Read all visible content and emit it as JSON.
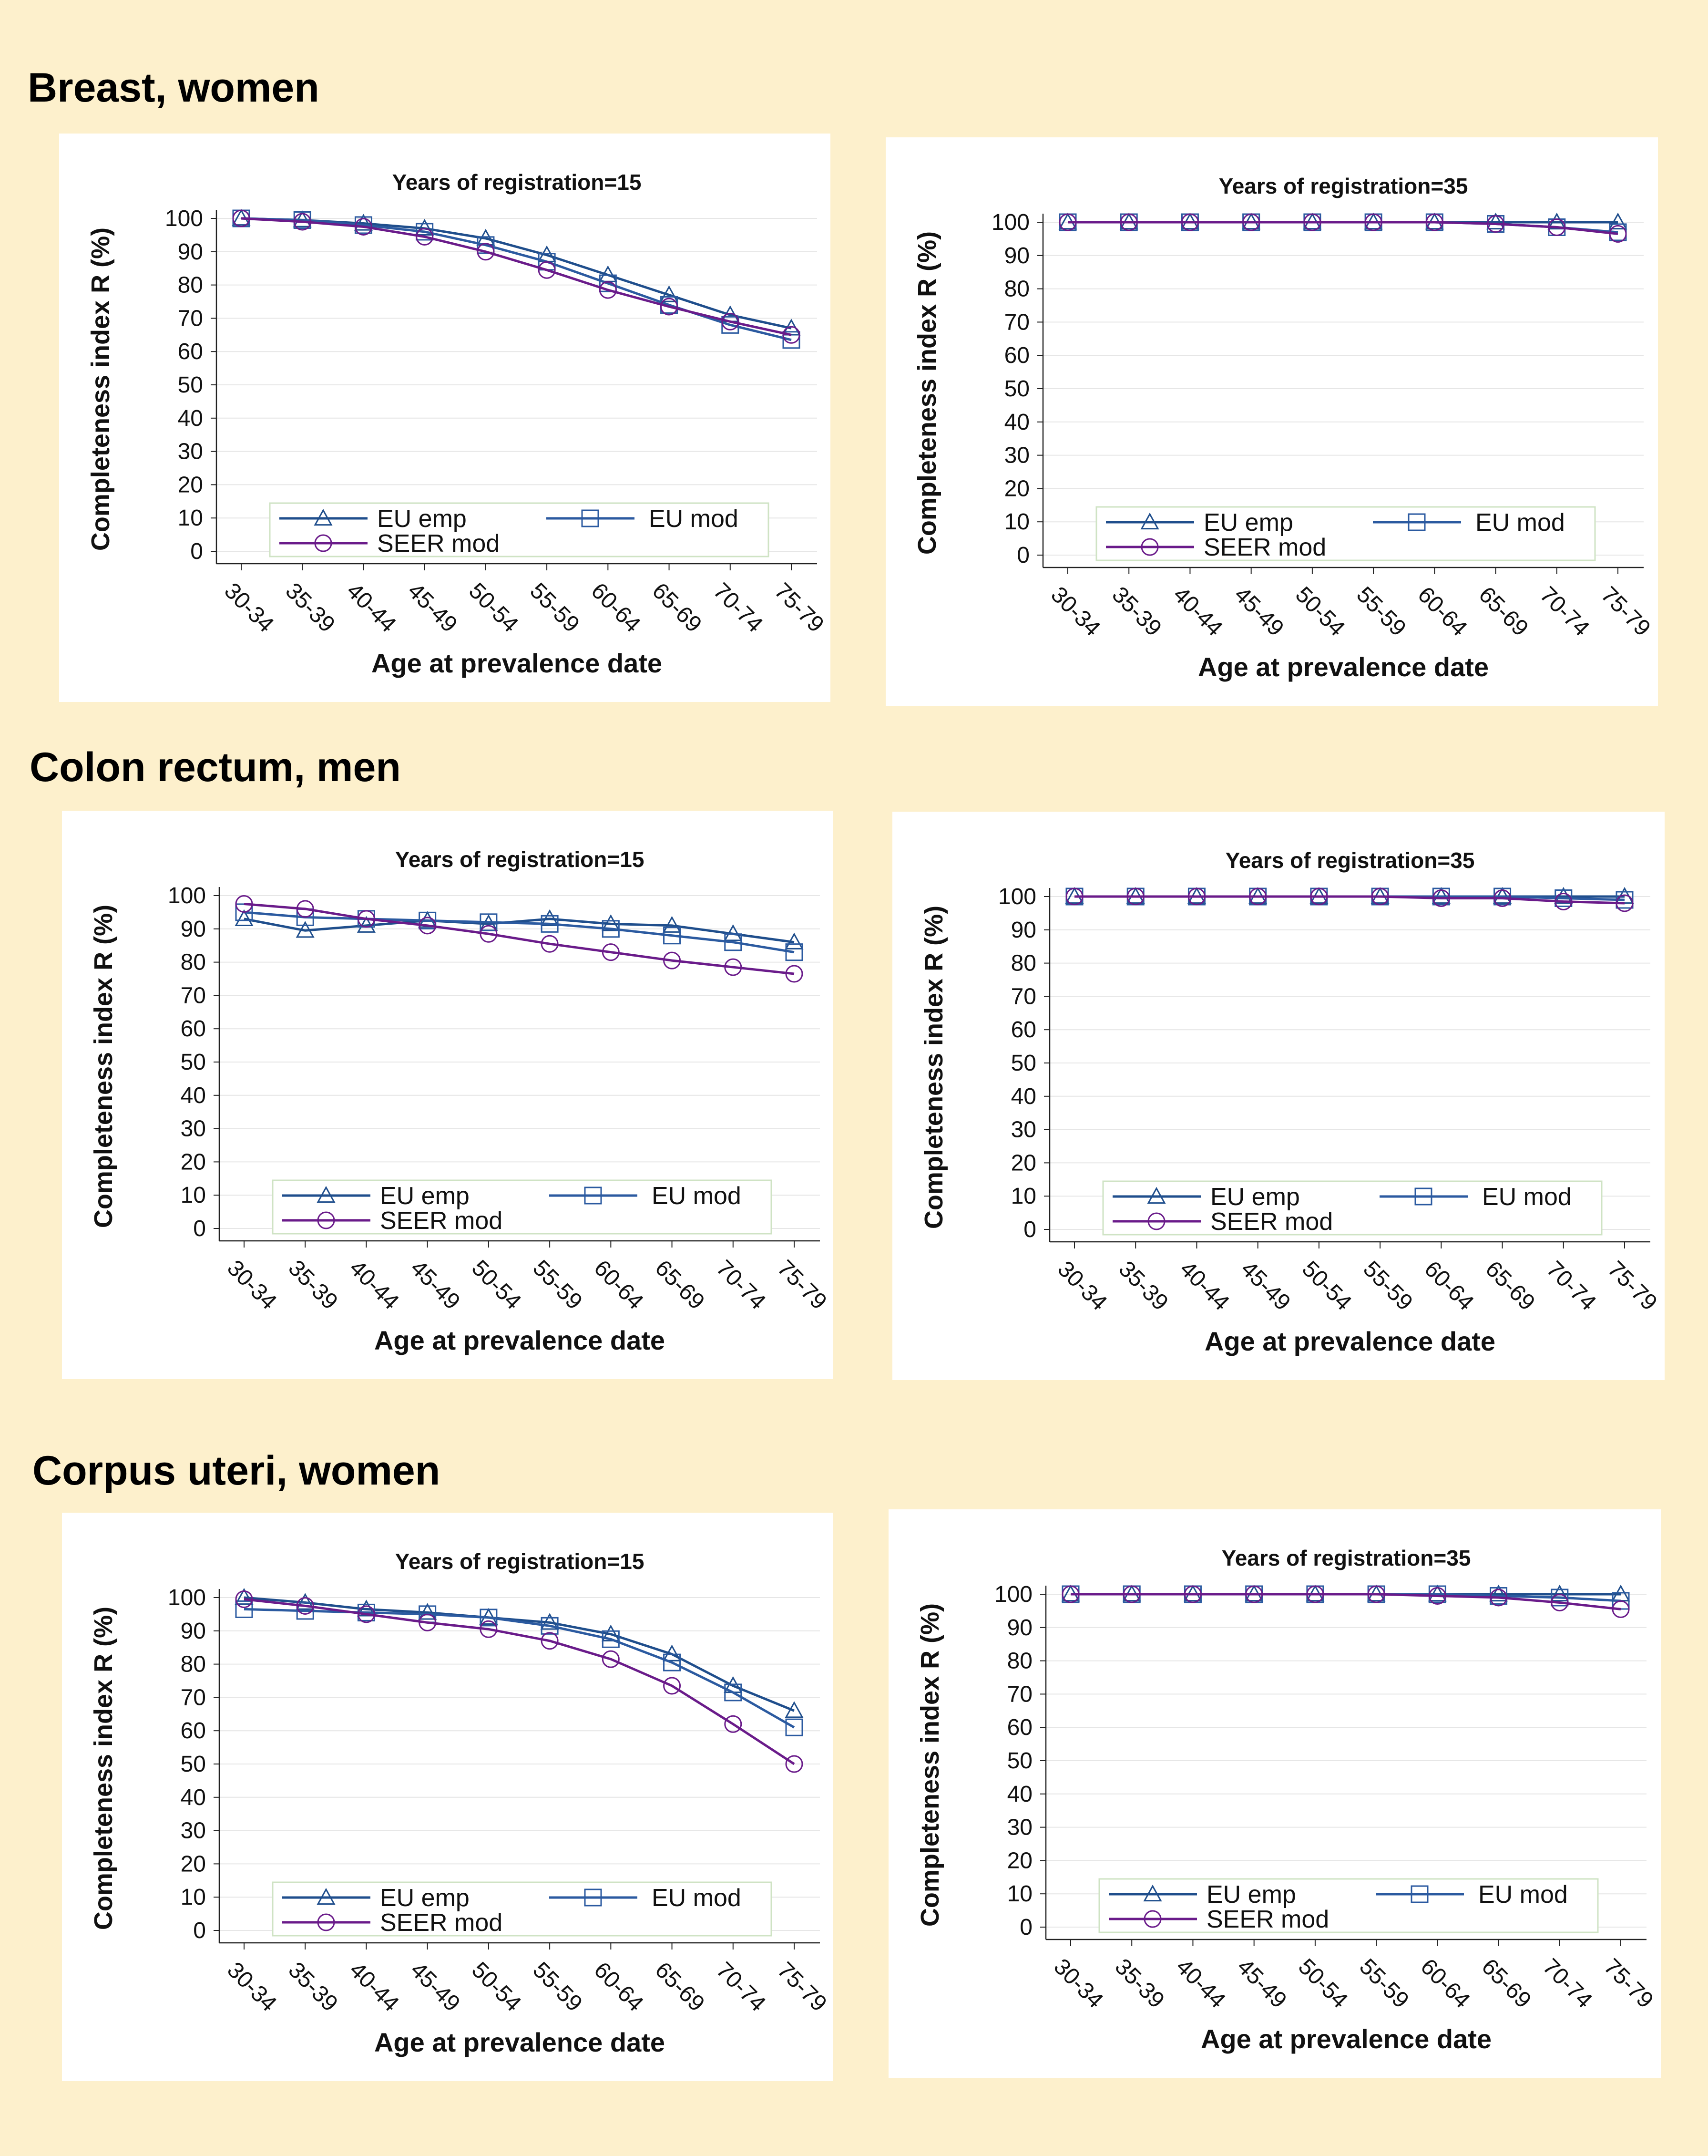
{
  "sections": [
    {
      "title": "Breast, women"
    },
    {
      "title": "Colon rectum, men"
    },
    {
      "title": "Corpus uteri, women"
    }
  ],
  "colors": {
    "eu_emp": "#1f4e8c",
    "eu_mod": "#2b5aa0",
    "seer_mod": "#6a1b8a",
    "grid": "#e6e6e6",
    "legend_border": "#cfe3c4"
  },
  "icons": {
    "eu_emp": "triangle-marker",
    "eu_mod": "square-marker",
    "seer_mod": "circle-marker"
  },
  "chart_data": [
    {
      "type": "line",
      "section": "Breast, women",
      "title": "Years of registration=15",
      "xlabel": "Age at prevalence date",
      "ylabel": "Completeness index R (%)",
      "ylim": [
        0,
        100
      ],
      "yticks": [
        "0",
        "10",
        "20",
        "30",
        "40",
        "50",
        "60",
        "70",
        "80",
        "90",
        "100"
      ],
      "categories": [
        "30-34",
        "35-39",
        "40-44",
        "45-49",
        "50-54",
        "55-59",
        "60-64",
        "65-69",
        "70-74",
        "75-79"
      ],
      "legend": [
        "EU emp",
        "EU mod",
        "SEER mod"
      ],
      "series": [
        {
          "name": "EU emp",
          "values": [
            100,
            99.5,
            98.5,
            97,
            94,
            89,
            83,
            77,
            71,
            67
          ]
        },
        {
          "name": "EU mod",
          "values": [
            100,
            99.5,
            98,
            96,
            92,
            87,
            80.5,
            74,
            68,
            63.5
          ]
        },
        {
          "name": "SEER mod",
          "values": [
            100,
            99,
            97.5,
            94.5,
            90,
            84.5,
            78.5,
            73.5,
            69,
            65
          ]
        }
      ]
    },
    {
      "type": "line",
      "section": "Breast, women",
      "title": "Years of registration=35",
      "xlabel": "Age at prevalence date",
      "ylabel": "Completeness index R (%)",
      "ylim": [
        0,
        100
      ],
      "yticks": [
        "0",
        "10",
        "20",
        "30",
        "40",
        "50",
        "60",
        "70",
        "80",
        "90",
        "100"
      ],
      "categories": [
        "30-34",
        "35-39",
        "40-44",
        "45-49",
        "50-54",
        "55-59",
        "60-64",
        "65-69",
        "70-74",
        "75-79"
      ],
      "legend": [
        "EU emp",
        "EU mod",
        "SEER mod"
      ],
      "series": [
        {
          "name": "EU emp",
          "values": [
            100,
            100,
            100,
            100,
            100,
            100,
            100,
            100,
            100,
            100
          ]
        },
        {
          "name": "EU mod",
          "values": [
            100,
            100,
            100,
            100,
            100,
            100,
            100,
            99.5,
            98.5,
            97
          ]
        },
        {
          "name": "SEER mod",
          "values": [
            100,
            100,
            100,
            100,
            100,
            100,
            100,
            99.5,
            98.5,
            96.5
          ]
        }
      ]
    },
    {
      "type": "line",
      "section": "Colon rectum, men",
      "title": "Years of registration=15",
      "xlabel": "Age at prevalence date",
      "ylabel": "Completeness index R (%)",
      "ylim": [
        0,
        100
      ],
      "yticks": [
        "0",
        "10",
        "20",
        "30",
        "40",
        "50",
        "60",
        "70",
        "80",
        "90",
        "100"
      ],
      "categories": [
        "30-34",
        "35-39",
        "40-44",
        "45-49",
        "50-54",
        "55-59",
        "60-64",
        "65-69",
        "70-74",
        "75-79"
      ],
      "legend": [
        "EU emp",
        "EU mod",
        "SEER mod"
      ],
      "series": [
        {
          "name": "EU emp",
          "values": [
            93,
            89.5,
            91,
            92.5,
            91.5,
            93,
            91.5,
            91,
            88.5,
            86
          ]
        },
        {
          "name": "EU mod",
          "values": [
            95,
            93.5,
            93,
            92.5,
            92,
            91.5,
            90,
            88,
            86,
            83
          ]
        },
        {
          "name": "SEER mod",
          "values": [
            97.5,
            96,
            93,
            91,
            88.5,
            85.5,
            83,
            80.5,
            78.5,
            76.5
          ]
        }
      ]
    },
    {
      "type": "line",
      "section": "Colon rectum, men",
      "title": "Years of registration=35",
      "xlabel": "Age at prevalence date",
      "ylabel": "Completeness index R (%)",
      "ylim": [
        0,
        100
      ],
      "yticks": [
        "0",
        "10",
        "20",
        "30",
        "40",
        "50",
        "60",
        "70",
        "80",
        "90",
        "100"
      ],
      "categories": [
        "30-34",
        "35-39",
        "40-44",
        "45-49",
        "50-54",
        "55-59",
        "60-64",
        "65-69",
        "70-74",
        "75-79"
      ],
      "legend": [
        "EU emp",
        "EU mod",
        "SEER mod"
      ],
      "series": [
        {
          "name": "EU emp",
          "values": [
            100,
            100,
            100,
            100,
            100,
            100,
            100,
            100,
            100,
            100
          ]
        },
        {
          "name": "EU mod",
          "values": [
            100,
            100,
            100,
            100,
            100,
            100,
            100,
            100,
            99.5,
            99
          ]
        },
        {
          "name": "SEER mod",
          "values": [
            100,
            100,
            100,
            100,
            100,
            100,
            99.5,
            99.5,
            98.5,
            98
          ]
        }
      ]
    },
    {
      "type": "line",
      "section": "Corpus uteri, women",
      "title": "Years of registration=15",
      "xlabel": "Age at prevalence date",
      "ylabel": "Completeness index R (%)",
      "ylim": [
        0,
        100
      ],
      "yticks": [
        "0",
        "10",
        "20",
        "30",
        "40",
        "50",
        "60",
        "70",
        "80",
        "90",
        "100"
      ],
      "categories": [
        "30-34",
        "35-39",
        "40-44",
        "45-49",
        "50-54",
        "55-59",
        "60-64",
        "65-69",
        "70-74",
        "75-79"
      ],
      "legend": [
        "EU emp",
        "EU mod",
        "SEER mod"
      ],
      "series": [
        {
          "name": "EU emp",
          "values": [
            100,
            98.5,
            96.5,
            95.5,
            94,
            92.5,
            89,
            83,
            73.5,
            66
          ]
        },
        {
          "name": "EU mod",
          "values": [
            96.5,
            96,
            95.5,
            95,
            94,
            91.5,
            87.5,
            80.5,
            71.5,
            61
          ]
        },
        {
          "name": "SEER mod",
          "values": [
            99.5,
            97.5,
            95,
            92.5,
            90.5,
            87,
            81.5,
            73.5,
            62,
            50
          ]
        }
      ]
    },
    {
      "type": "line",
      "section": "Corpus uteri, women",
      "title": "Years of registration=35",
      "xlabel": "Age at prevalence date",
      "ylabel": "Completeness index R (%)",
      "ylim": [
        0,
        100
      ],
      "yticks": [
        "0",
        "10",
        "20",
        "30",
        "40",
        "50",
        "60",
        "70",
        "80",
        "90",
        "100"
      ],
      "categories": [
        "30-34",
        "35-39",
        "40-44",
        "45-49",
        "50-54",
        "55-59",
        "60-64",
        "65-69",
        "70-74",
        "75-79"
      ],
      "legend": [
        "EU emp",
        "EU mod",
        "SEER mod"
      ],
      "series": [
        {
          "name": "EU emp",
          "values": [
            100,
            100,
            100,
            100,
            100,
            100,
            100,
            100,
            100,
            100
          ]
        },
        {
          "name": "EU mod",
          "values": [
            100,
            100,
            100,
            100,
            100,
            100,
            100,
            99.5,
            99,
            98
          ]
        },
        {
          "name": "SEER mod",
          "values": [
            100,
            100,
            100,
            100,
            100,
            100,
            99.5,
            99,
            97.5,
            95.5
          ]
        }
      ]
    }
  ]
}
